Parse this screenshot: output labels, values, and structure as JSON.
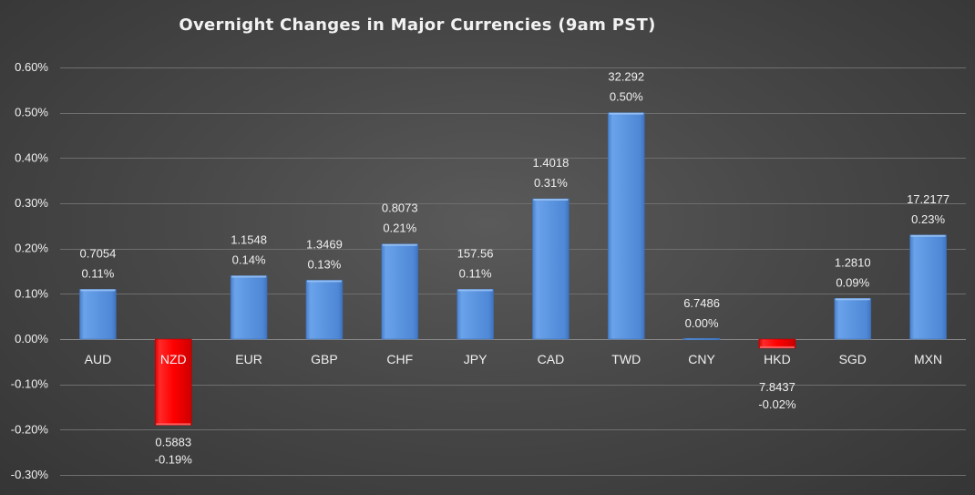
{
  "chart_data": {
    "type": "bar",
    "title": "Overnight Changes in Major Currencies (9am PST)",
    "categories": [
      "AUD",
      "NZD",
      "EUR",
      "GBP",
      "CHF",
      "JPY",
      "CAD",
      "TWD",
      "CNY",
      "HKD",
      "SGD",
      "MXN"
    ],
    "values": [
      0.11,
      -0.19,
      0.14,
      0.13,
      0.21,
      0.11,
      0.31,
      0.5,
      0.0,
      -0.02,
      0.09,
      0.23
    ],
    "value_labels": [
      "0.11%",
      "-0.19%",
      "0.14%",
      "0.13%",
      "0.21%",
      "0.11%",
      "0.31%",
      "0.50%",
      "0.00%",
      "-0.02%",
      "0.09%",
      "0.23%"
    ],
    "rates": [
      "0.7054",
      "0.5883",
      "1.1548",
      "1.3469",
      "0.8073",
      "157.56",
      "1.4018",
      "32.292",
      "6.7486",
      "7.8437",
      "1.2810",
      "17.2177"
    ],
    "ylim": [
      -0.3,
      0.6
    ],
    "yticks": [
      0.6,
      0.5,
      0.4,
      0.3,
      0.2,
      0.1,
      0.0,
      -0.1,
      -0.2,
      -0.3
    ],
    "ytick_labels": [
      "0.60%",
      "0.50%",
      "0.40%",
      "0.30%",
      "0.20%",
      "0.10%",
      "0.00%",
      "-0.10%",
      "-0.20%",
      "-0.30%"
    ],
    "grid": true,
    "colors": {
      "positive": "#5b95e0",
      "negative": "#ff0000"
    }
  }
}
